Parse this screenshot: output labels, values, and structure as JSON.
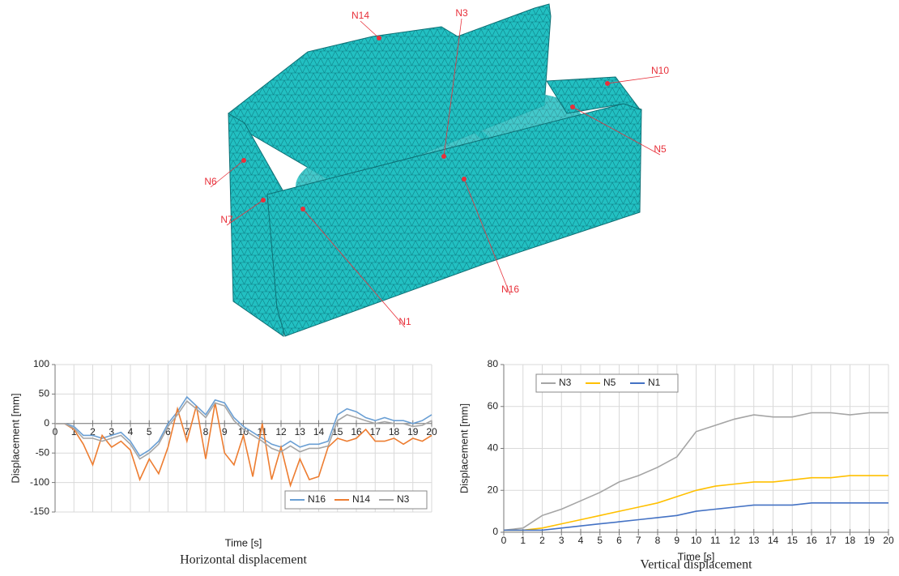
{
  "mesh": {
    "node_labels": [
      "N14",
      "N3",
      "N10",
      "N5",
      "N6",
      "N7",
      "N16",
      "N1"
    ]
  },
  "chart_data": [
    {
      "type": "line",
      "caption": "Horizontal displacement",
      "x_label": "Time [s]",
      "y_label": "Displacement [mm]",
      "x": [
        0,
        0.5,
        1,
        1.5,
        2,
        2.5,
        3,
        3.5,
        4,
        4.5,
        5,
        5.5,
        6,
        6.5,
        7,
        7.5,
        8,
        8.5,
        9,
        9.5,
        10,
        10.5,
        11,
        11.5,
        12,
        12.5,
        13,
        13.5,
        14,
        14.5,
        15,
        15.5,
        16,
        16.5,
        17,
        17.5,
        18,
        18.5,
        19,
        19.5,
        20
      ],
      "series": [
        {
          "name": "N16",
          "color": "#6a9fd4",
          "values": [
            0,
            0,
            -5,
            -20,
            -20,
            -25,
            -20,
            -15,
            -30,
            -55,
            -45,
            -30,
            0,
            20,
            45,
            30,
            15,
            40,
            35,
            10,
            -5,
            -15,
            -25,
            -35,
            -40,
            -30,
            -40,
            -35,
            -35,
            -30,
            15,
            25,
            20,
            10,
            5,
            10,
            5,
            5,
            0,
            5,
            15
          ]
        },
        {
          "name": "N14",
          "color": "#ed7d31",
          "values": [
            0,
            0,
            -10,
            -35,
            -70,
            -20,
            -40,
            -30,
            -45,
            -95,
            -60,
            -85,
            -40,
            25,
            -30,
            30,
            -60,
            35,
            -50,
            -70,
            -20,
            -90,
            0,
            -95,
            -40,
            -105,
            -60,
            -95,
            -90,
            -40,
            -25,
            -30,
            -25,
            -10,
            -30,
            -30,
            -25,
            -35,
            -25,
            -30,
            -20
          ]
        },
        {
          "name": "N3",
          "color": "#a5a5a5",
          "values": [
            0,
            0,
            -8,
            -25,
            -25,
            -30,
            -25,
            -20,
            -35,
            -60,
            -50,
            -35,
            -5,
            15,
            38,
            25,
            10,
            35,
            30,
            5,
            -10,
            -20,
            -30,
            -42,
            -48,
            -38,
            -48,
            -42,
            -42,
            -38,
            5,
            15,
            10,
            5,
            0,
            3,
            0,
            0,
            -5,
            -3,
            5
          ]
        }
      ],
      "xlim": [
        0,
        20
      ],
      "xticks": [
        0,
        1,
        2,
        3,
        4,
        5,
        6,
        7,
        8,
        9,
        10,
        11,
        12,
        13,
        14,
        15,
        16,
        17,
        18,
        19,
        20
      ],
      "ylim": [
        -150,
        100
      ],
      "yticks": [
        -150,
        -100,
        -50,
        0,
        50,
        100
      ],
      "grid": true,
      "legend": "lower right"
    },
    {
      "type": "line",
      "caption": "Vertical displacement",
      "x_label": "Time [s]",
      "y_label": "Displacement [mm]",
      "x": [
        0,
        1,
        2,
        3,
        4,
        5,
        6,
        7,
        8,
        9,
        10,
        11,
        12,
        13,
        14,
        15,
        16,
        17,
        18,
        19,
        20
      ],
      "series": [
        {
          "name": "N3",
          "color": "#a5a5a5",
          "values": [
            1,
            2,
            8,
            11,
            15,
            19,
            24,
            27,
            31,
            36,
            48,
            51,
            54,
            56,
            55,
            55,
            57,
            57,
            56,
            57,
            57
          ]
        },
        {
          "name": "N5",
          "color": "#ffc000",
          "values": [
            1,
            1,
            2,
            4,
            6,
            8,
            10,
            12,
            14,
            17,
            20,
            22,
            23,
            24,
            24,
            25,
            26,
            26,
            27,
            27,
            27
          ]
        },
        {
          "name": "N1",
          "color": "#4472c4",
          "values": [
            1,
            1,
            1,
            2,
            3,
            4,
            5,
            6,
            7,
            8,
            10,
            11,
            12,
            13,
            13,
            13,
            14,
            14,
            14,
            14,
            14
          ]
        }
      ],
      "xlim": [
        0,
        20
      ],
      "xticks": [
        0,
        1,
        2,
        3,
        4,
        5,
        6,
        7,
        8,
        9,
        10,
        11,
        12,
        13,
        14,
        15,
        16,
        17,
        18,
        19,
        20
      ],
      "ylim": [
        0,
        80
      ],
      "yticks": [
        0,
        20,
        40,
        60,
        80
      ],
      "grid": true,
      "legend": "upper left"
    }
  ]
}
